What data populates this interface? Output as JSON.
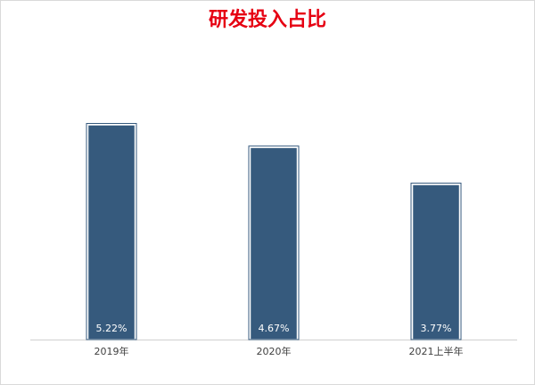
{
  "chart_data": {
    "type": "bar",
    "title": "研发投入占比",
    "categories": [
      "2019年",
      "2020年",
      "2021上半年"
    ],
    "values": [
      5.22,
      4.67,
      3.77
    ],
    "value_labels": [
      "5.22%",
      "4.67%",
      "3.77%"
    ],
    "color": "#365a7d"
  }
}
